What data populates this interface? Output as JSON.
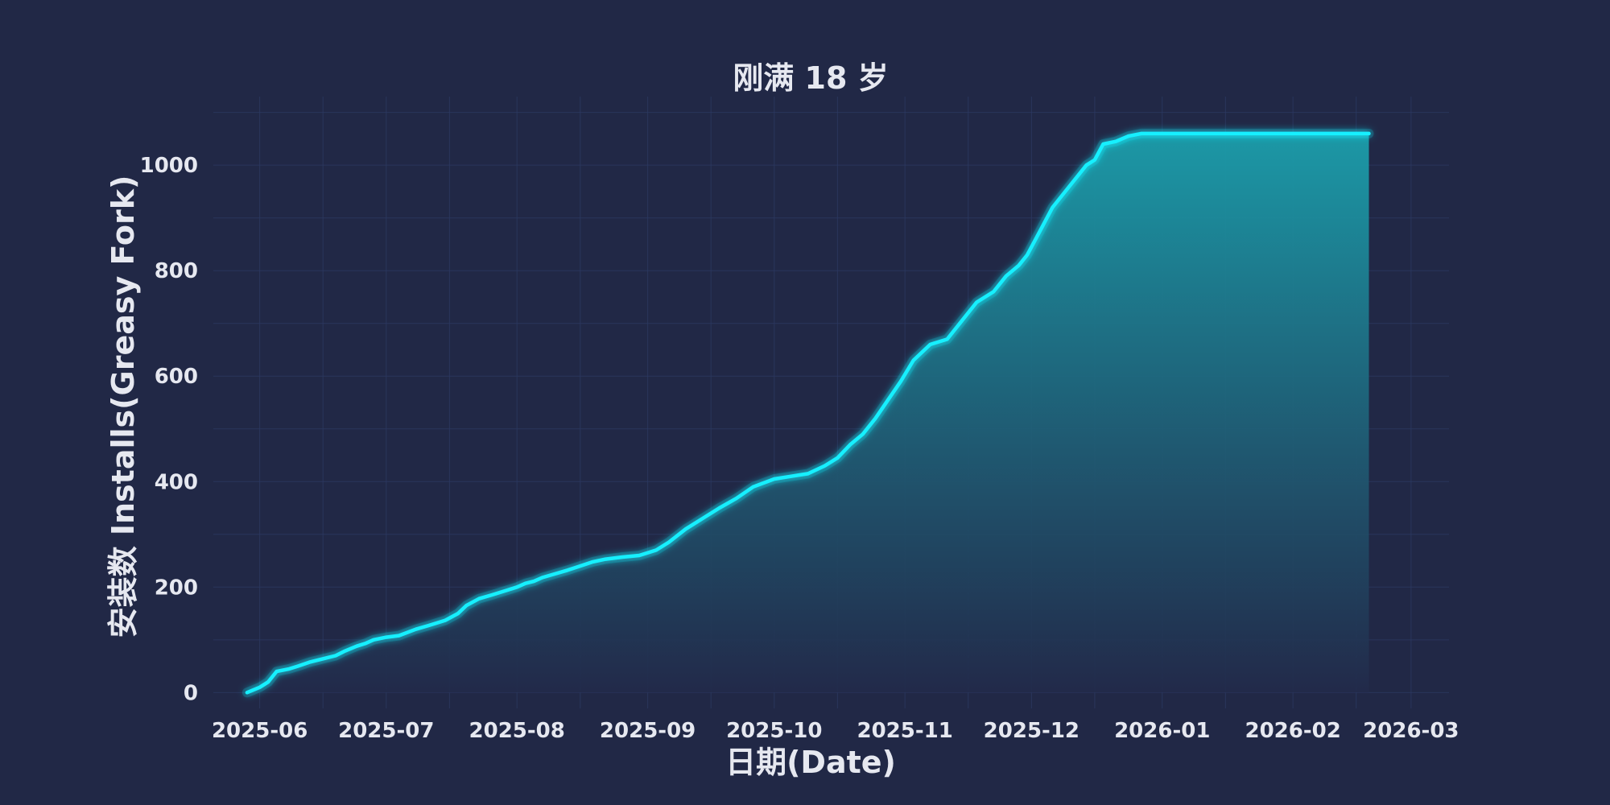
{
  "chart_data": {
    "type": "area",
    "title": "刚满 18 岁",
    "xlabel": "日期(Date)",
    "ylabel": "安装数 Installs(Greasy Fork)",
    "x_ticks": [
      "2025-06",
      "2025-07",
      "2025-08",
      "2025-09",
      "2025-10",
      "2025-11",
      "2025-12",
      "2026-01",
      "2026-02",
      "2026-03"
    ],
    "y_ticks": [
      0,
      200,
      400,
      600,
      800,
      1000
    ],
    "xlim": [
      "2025-05-21",
      "2026-03-10"
    ],
    "ylim": [
      -30,
      1130
    ],
    "grid": true,
    "colors": {
      "background": "#212846",
      "line": "#19f0ff",
      "fill_top": "#1b9eab",
      "fill_bottom": "#222a4a",
      "grid": "#2c3a63",
      "text": "#e6e8f0"
    },
    "series": [
      {
        "x": [
          "2025-05-29",
          "2025-06-01",
          "2025-06-03",
          "2025-06-05",
          "2025-06-08",
          "2025-06-10",
          "2025-06-13",
          "2025-06-15",
          "2025-06-17",
          "2025-06-19",
          "2025-06-21",
          "2025-06-24",
          "2025-06-26",
          "2025-06-28",
          "2025-07-01",
          "2025-07-04",
          "2025-07-08",
          "2025-07-11",
          "2025-07-15",
          "2025-07-18",
          "2025-07-20",
          "2025-07-23",
          "2025-07-26",
          "2025-07-30",
          "2025-08-01",
          "2025-08-03",
          "2025-08-05",
          "2025-08-07",
          "2025-08-10",
          "2025-08-13",
          "2025-08-16",
          "2025-08-19",
          "2025-08-22",
          "2025-08-26",
          "2025-08-30",
          "2025-09-03",
          "2025-09-06",
          "2025-09-10",
          "2025-09-14",
          "2025-09-18",
          "2025-09-22",
          "2025-09-26",
          "2025-10-01",
          "2025-10-05",
          "2025-10-09",
          "2025-10-13",
          "2025-10-16",
          "2025-10-19",
          "2025-10-22",
          "2025-10-25",
          "2025-10-28",
          "2025-10-31",
          "2025-11-03",
          "2025-11-07",
          "2025-11-11",
          "2025-11-14",
          "2025-11-18",
          "2025-11-22",
          "2025-11-25",
          "2025-11-28",
          "2025-11-30",
          "2025-12-02",
          "2025-12-04",
          "2025-12-06",
          "2025-12-08",
          "2025-12-10",
          "2025-12-12",
          "2025-12-14",
          "2025-12-16",
          "2025-12-18",
          "2025-12-21",
          "2025-12-24",
          "2025-12-27",
          "2025-12-30",
          "2026-01-01",
          "2026-01-03",
          "2026-01-05",
          "2026-01-08",
          "2026-01-10",
          "2026-01-12",
          "2026-01-14",
          "2026-01-17",
          "2026-01-20",
          "2026-01-22",
          "2026-01-24",
          "2026-01-27",
          "2026-01-29",
          "2026-01-31",
          "2026-02-03",
          "2026-02-06",
          "2026-02-09",
          "2026-02-11",
          "2026-02-13",
          "2026-02-15",
          "2026-02-17",
          "2026-02-19"
        ],
        "y": [
          0,
          10,
          20,
          40,
          45,
          50,
          58,
          62,
          66,
          70,
          78,
          88,
          93,
          100,
          105,
          108,
          120,
          127,
          137,
          150,
          165,
          178,
          185,
          195,
          200,
          207,
          211,
          218,
          225,
          232,
          240,
          248,
          253,
          257,
          260,
          270,
          285,
          310,
          330,
          350,
          368,
          390,
          405,
          410,
          415,
          430,
          445,
          470,
          490,
          520,
          555,
          590,
          630,
          660,
          670,
          700,
          740,
          760,
          790,
          810,
          830,
          860,
          890,
          920,
          940,
          960,
          980,
          1000,
          1010,
          1040,
          1045,
          1055,
          1060,
          1060,
          1060,
          1060,
          1060,
          1060,
          1060,
          1060,
          1060,
          1060,
          1060,
          1060,
          1060,
          1060,
          1060,
          1060,
          1060,
          1060,
          1060,
          1060,
          1060,
          1060,
          1060,
          1060
        ]
      }
    ]
  }
}
